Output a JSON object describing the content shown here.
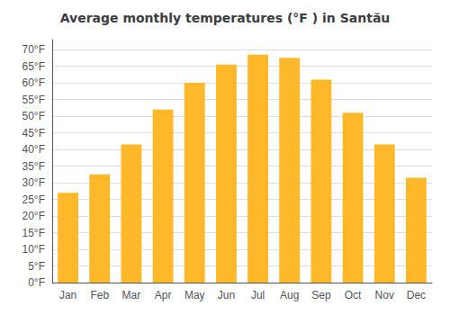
{
  "chart_data": {
    "type": "bar",
    "title": "Average monthly temperatures (°F ) in Santău",
    "categories": [
      "Jan",
      "Feb",
      "Mar",
      "Apr",
      "May",
      "Jun",
      "Jul",
      "Aug",
      "Sep",
      "Oct",
      "Nov",
      "Dec"
    ],
    "values": [
      27,
      32.5,
      41.5,
      52,
      60,
      65.5,
      68.5,
      67.5,
      61,
      51,
      41.5,
      31.5
    ],
    "color": "#FFB829",
    "ylim": [
      0,
      73
    ],
    "yticks": [
      {
        "value": 0,
        "label": "0°F"
      },
      {
        "value": 5,
        "label": "5°F"
      },
      {
        "value": 10,
        "label": "10°F"
      },
      {
        "value": 15,
        "label": "15°F"
      },
      {
        "value": 20,
        "label": "20°F"
      },
      {
        "value": 25,
        "label": "25°F"
      },
      {
        "value": 30,
        "label": "30°F"
      },
      {
        "value": 35,
        "label": "35°F"
      },
      {
        "value": 40,
        "label": "40°F"
      },
      {
        "value": 45,
        "label": "45°F"
      },
      {
        "value": 50,
        "label": "50°F"
      },
      {
        "value": 55,
        "label": "55°F"
      },
      {
        "value": 60,
        "label": "60°F"
      },
      {
        "value": 65,
        "label": "65°F"
      },
      {
        "value": 70,
        "label": "70°F"
      }
    ],
    "grid": true
  }
}
